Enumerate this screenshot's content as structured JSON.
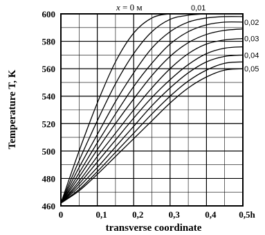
{
  "chart_data": {
    "type": "line",
    "xlabel": "transverse coordinate",
    "ylabel": "Temperature T, K",
    "xlim": [
      0,
      0.5
    ],
    "ylim": [
      460,
      600
    ],
    "x_tick_labels": [
      "0",
      "0,1",
      "0,2",
      "0,3",
      "0,4",
      "0,5h"
    ],
    "x_tick_values": [
      0,
      0.1,
      0.2,
      0.3,
      0.4,
      0.5
    ],
    "y_ticks": [
      460,
      480,
      500,
      520,
      540,
      560,
      580,
      600
    ],
    "x_minor_step": 0.05,
    "y_minor_step": 10,
    "grid": true,
    "curve_label_prefix": {
      "var": "x",
      "eq": " = 0 ",
      "unit": "м"
    },
    "series": [
      {
        "label": "x = 0 м",
        "x": [
          0,
          0.05,
          0.1,
          0.15,
          0.2,
          0.25,
          0.3,
          0.35,
          0.4,
          0.45,
          0.5
        ],
        "y": [
          462,
          500,
          535,
          565,
          586,
          597,
          600,
          600,
          600,
          600,
          600
        ]
      },
      {
        "label": "0,01",
        "x": [
          0,
          0.05,
          0.1,
          0.15,
          0.2,
          0.25,
          0.3,
          0.35,
          0.4,
          0.45,
          0.5
        ],
        "y": [
          462,
          493,
          522,
          549,
          571,
          587,
          596,
          599,
          600,
          600,
          600
        ]
      },
      {
        "label": "",
        "x": [
          0,
          0.05,
          0.1,
          0.15,
          0.2,
          0.25,
          0.3,
          0.35,
          0.4,
          0.45,
          0.5
        ],
        "y": [
          462,
          488,
          512,
          536,
          557,
          575,
          587,
          594,
          597,
          598,
          598
        ]
      },
      {
        "label": "0,02",
        "x": [
          0,
          0.05,
          0.1,
          0.15,
          0.2,
          0.25,
          0.3,
          0.35,
          0.4,
          0.45,
          0.5
        ],
        "y": [
          462,
          484,
          506,
          527,
          547,
          564,
          578,
          587,
          592,
          594,
          594
        ]
      },
      {
        "label": "",
        "x": [
          0,
          0.05,
          0.1,
          0.15,
          0.2,
          0.25,
          0.3,
          0.35,
          0.4,
          0.45,
          0.5
        ],
        "y": [
          462,
          481,
          501,
          520,
          538,
          555,
          569,
          579,
          585,
          588,
          589
        ]
      },
      {
        "label": "0,03",
        "x": [
          0,
          0.05,
          0.1,
          0.15,
          0.2,
          0.25,
          0.3,
          0.35,
          0.4,
          0.45,
          0.5
        ],
        "y": [
          462,
          478,
          496,
          513,
          530,
          546,
          560,
          571,
          578,
          581,
          582
        ]
      },
      {
        "label": "",
        "x": [
          0,
          0.05,
          0.1,
          0.15,
          0.2,
          0.25,
          0.3,
          0.35,
          0.4,
          0.45,
          0.5
        ],
        "y": [
          462,
          476,
          492,
          508,
          524,
          539,
          552,
          563,
          571,
          575,
          576
        ]
      },
      {
        "label": "0,04",
        "x": [
          0,
          0.05,
          0.1,
          0.15,
          0.2,
          0.25,
          0.3,
          0.35,
          0.4,
          0.45,
          0.5
        ],
        "y": [
          462,
          474,
          488,
          503,
          518,
          533,
          546,
          557,
          565,
          569,
          570
        ]
      },
      {
        "label": "",
        "x": [
          0,
          0.05,
          0.1,
          0.15,
          0.2,
          0.25,
          0.3,
          0.35,
          0.4,
          0.45,
          0.5
        ],
        "y": [
          462,
          472,
          485,
          499,
          513,
          527,
          540,
          551,
          559,
          564,
          565
        ]
      },
      {
        "label": "0,05",
        "x": [
          0,
          0.05,
          0.1,
          0.15,
          0.2,
          0.25,
          0.3,
          0.35,
          0.4,
          0.45,
          0.5
        ],
        "y": [
          462,
          471,
          483,
          496,
          509,
          522,
          535,
          546,
          554,
          559,
          560
        ]
      }
    ]
  }
}
